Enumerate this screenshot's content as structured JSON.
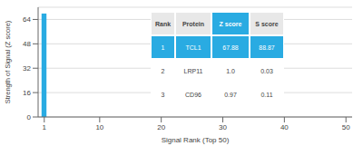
{
  "chart_data": {
    "type": "bar",
    "x": [
      1
    ],
    "values": [
      67.88
    ],
    "color": "#29abe2",
    "xlim": [
      0,
      51
    ],
    "xticks": [
      1,
      10,
      20,
      30,
      40,
      50
    ],
    "ylim": [
      0,
      72
    ],
    "yticks": [
      0,
      16,
      32,
      48,
      64
    ],
    "xlabel": "Signal Rank (Top 50)",
    "ylabel": "Strength of Signal (Z score)",
    "grid": true,
    "table": {
      "headers": [
        "Rank",
        "Protein",
        "Z score",
        "S score"
      ],
      "rows": [
        [
          "1",
          "TCL1",
          "67.88",
          "88.87"
        ],
        [
          "2",
          "LRP11",
          "1.0",
          "0.03"
        ],
        [
          "3",
          "CD96",
          "0.97",
          "0.11"
        ]
      ]
    }
  }
}
